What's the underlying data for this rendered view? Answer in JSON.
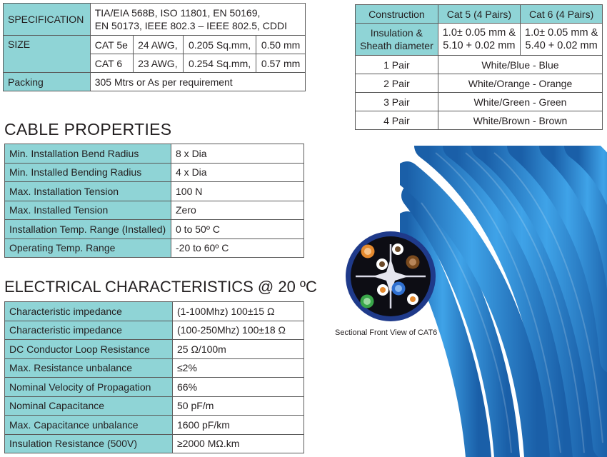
{
  "spec_table": {
    "specification_label": "SPECIFICATION",
    "specification_line1": "TIA/EIA 568B, ISO 11801, EN 50169,",
    "specification_line2": "EN 50173, IEEE 802.3 – IEEE 802.5, CDDI",
    "size_label": "SIZE",
    "size_rows": [
      {
        "cat": "CAT 5e",
        "awg": "24 AWG,",
        "area": "0.205 Sq.mm,",
        "dia": "0.50 mm"
      },
      {
        "cat": "CAT 6",
        "awg": "23 AWG,",
        "area": "0.254 Sq.mm,",
        "dia": "0.57 mm"
      }
    ],
    "packing_label": "Packing",
    "packing_value": "305 Mtrs or As per requirement"
  },
  "cable_properties": {
    "heading": "CABLE PROPERTIES",
    "rows": [
      {
        "label": "Min. Installation Bend Radius",
        "value": "8 x Dia"
      },
      {
        "label": "Min. Installed Bending Radius",
        "value": "4 x Dia"
      },
      {
        "label": "Max. Installation Tension",
        "value": "100 N"
      },
      {
        "label": "Max. Installed Tension",
        "value": "Zero"
      },
      {
        "label": "Installation Temp. Range (Installed)",
        "value": "0 to 50º C"
      },
      {
        "label": "Operating Temp. Range",
        "value": "-20 to 60º C"
      }
    ]
  },
  "electrical": {
    "heading": "ELECTRICAL CHARACTERISTICS @ 20 ºC",
    "rows": [
      {
        "label": "Characteristic impedance",
        "value": "(1-100Mhz) 100±15 Ω"
      },
      {
        "label": "Characteristic impedance",
        "value": "(100-250Mhz) 100±18 Ω"
      },
      {
        "label": "DC Conductor Loop Resistance",
        "value": "25 Ω/100m"
      },
      {
        "label": "Max. Resistance unbalance",
        "value": "≤2%"
      },
      {
        "label": "Nominal Velocity of Propagation",
        "value": "66%"
      },
      {
        "label": "Nominal Capacitance",
        "value": "50 pF/m"
      },
      {
        "label": "Max. Capacitance unbalance",
        "value": "1600 pF/km"
      },
      {
        "label": "Insulation Resistance (500V)",
        "value": "≥2000 MΩ.km"
      }
    ]
  },
  "construction": {
    "header": [
      "Construction",
      "Cat 5 (4 Pairs)",
      "Cat 6 (4 Pairs)"
    ],
    "insulation_label_line1": "Insulation  &",
    "insulation_label_line2": "Sheath diameter",
    "cat5_line1": "1.0± 0.05 mm &",
    "cat5_line2": "5.10 + 0.02 mm",
    "cat6_line1": "1.0± 0.05 mm &",
    "cat6_line2": "5.40 + 0.02 mm",
    "pairs": [
      {
        "pair": "1 Pair",
        "colors": "White/Blue - Blue"
      },
      {
        "pair": "2 Pair",
        "colors": "White/Orange - Orange"
      },
      {
        "pair": "3 Pair",
        "colors": "White/Green - Green"
      },
      {
        "pair": "4 Pair",
        "colors": "White/Brown - Brown"
      }
    ]
  },
  "section_caption": "Sectional Front View of CAT6",
  "colors": {
    "label_bg": "#8fd4d6",
    "cable_blue": "#2f8fd8",
    "jacket_navy": "#1f3a8a"
  }
}
